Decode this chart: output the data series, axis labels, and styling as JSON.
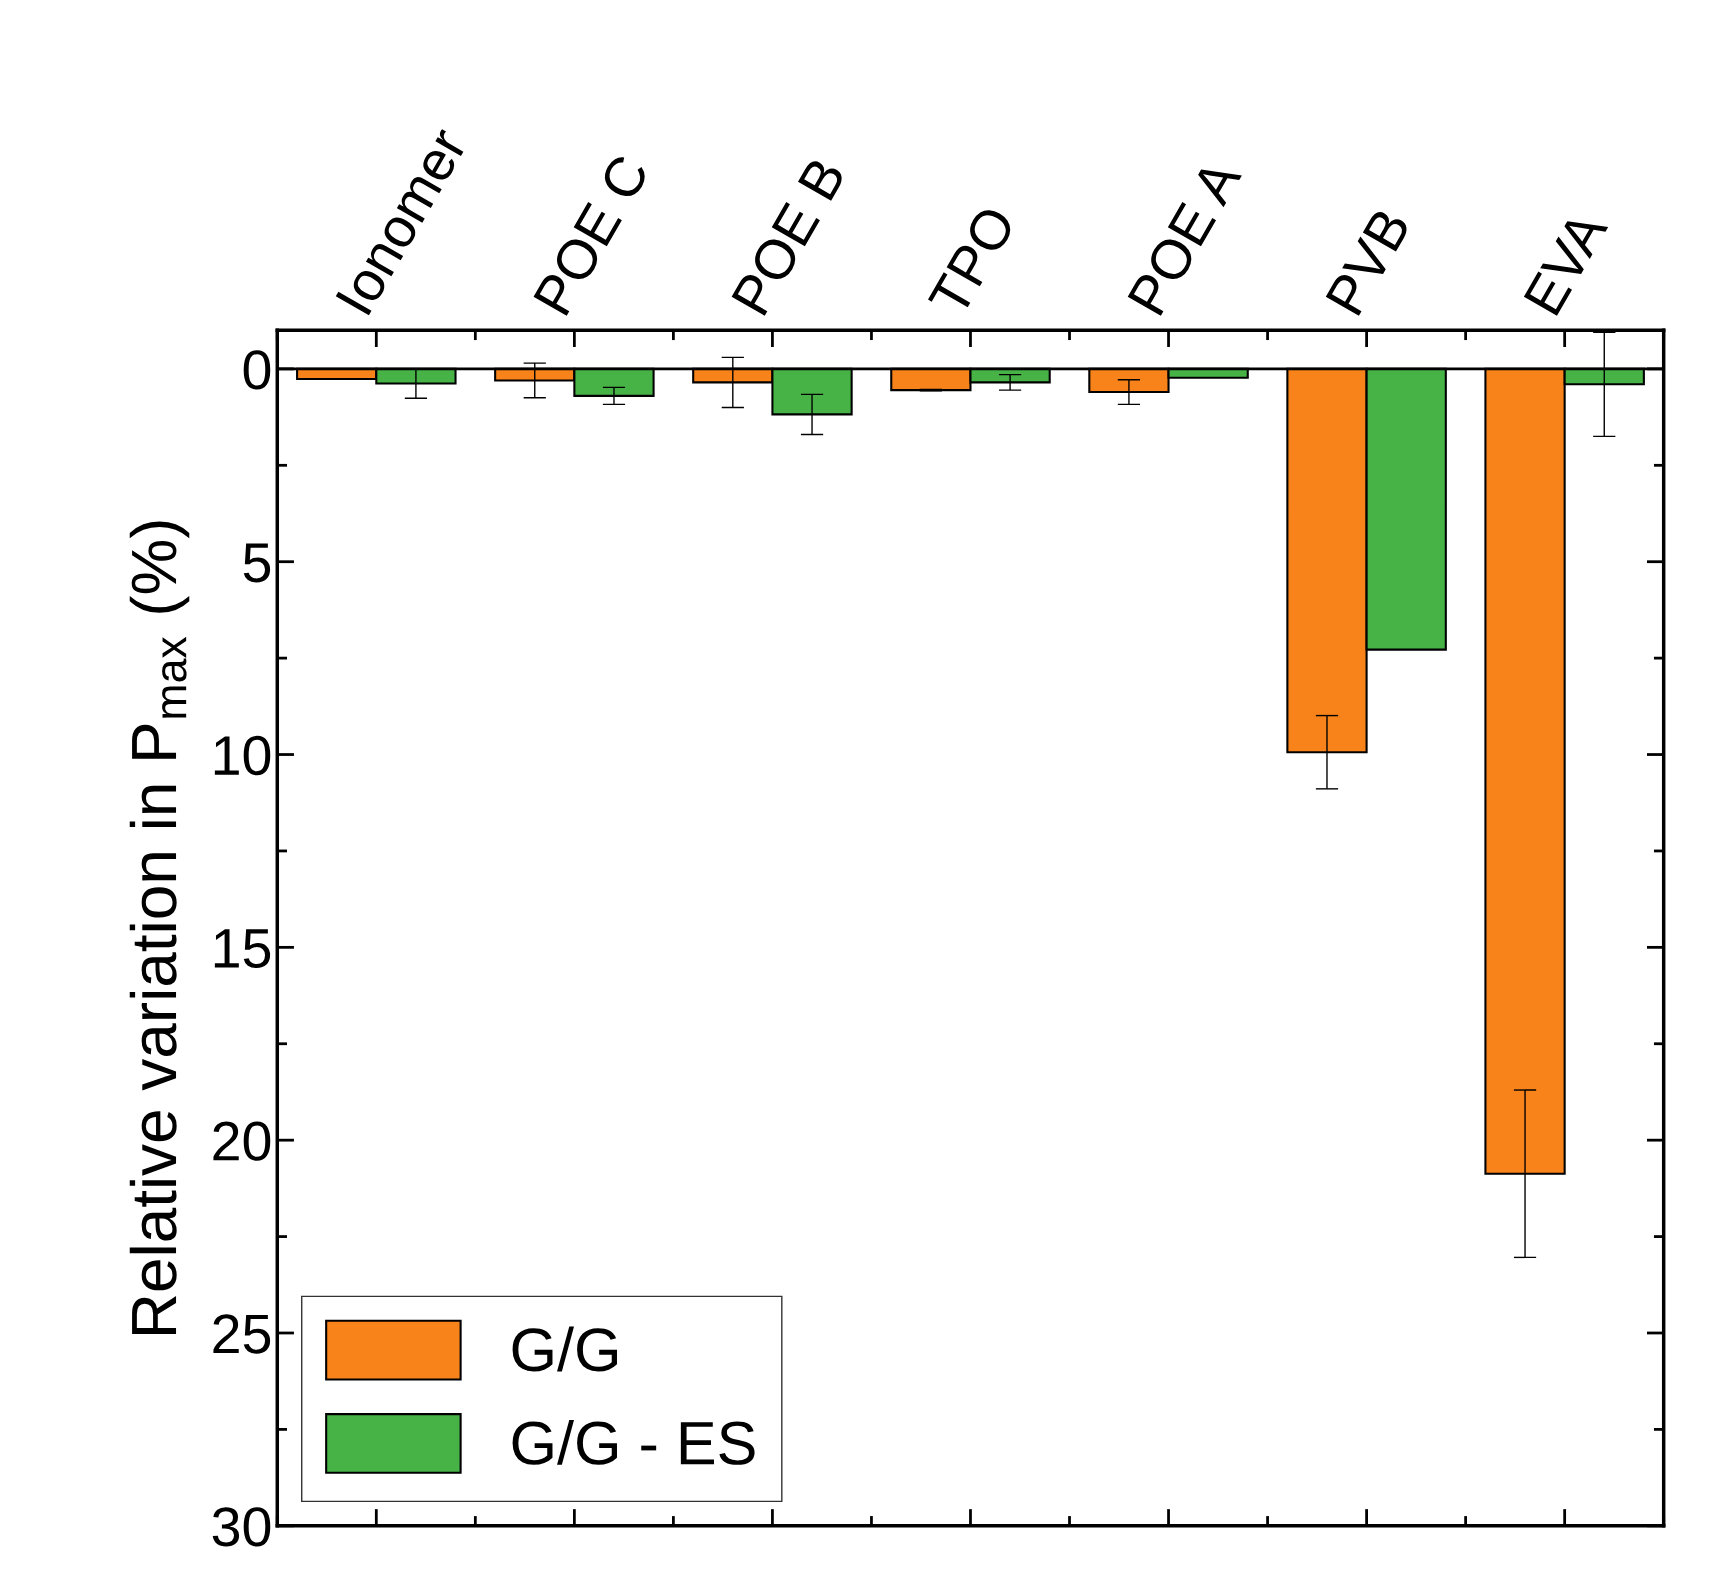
{
  "chart_data": {
    "type": "bar",
    "ylabel": "Relative variation in P$_{max}$ (%)",
    "categories": [
      "Ionomer",
      "POE C",
      "POE B",
      "TPO",
      "POE A",
      "PVB",
      "EVA"
    ],
    "series": [
      {
        "name": "G/G",
        "color": "#f7831a",
        "values": [
          0.26,
          0.3,
          0.35,
          0.55,
          0.6,
          9.94,
          20.87
        ],
        "errors": [
          null,
          0.45,
          0.65,
          0.02,
          0.32,
          0.95,
          2.17
        ]
      },
      {
        "name": "G/G - ES",
        "color": "#47b347",
        "values": [
          0.38,
          0.7,
          1.18,
          0.35,
          0.23,
          7.28,
          0.4
        ],
        "errors": [
          0.38,
          0.22,
          0.52,
          0.2,
          null,
          null,
          1.35
        ]
      }
    ],
    "ylim": [
      30,
      -1
    ],
    "yticks": [
      0,
      {
        "value": 2.5,
        "label": null
      },
      5,
      {
        "value": 7.5,
        "label": null
      },
      10,
      {
        "value": 12.5,
        "label": null
      },
      15,
      {
        "value": 17.5,
        "label": null
      },
      20,
      {
        "value": 22.5,
        "label": null
      },
      25,
      {
        "value": 27.5,
        "label": null
      },
      30
    ],
    "ref_lines": [
      {
        "axis": "y",
        "value": 0,
        "label": null,
        "color": "#000000",
        "line_style": "solid"
      }
    ],
    "legend": "bottom left",
    "grid": false
  }
}
